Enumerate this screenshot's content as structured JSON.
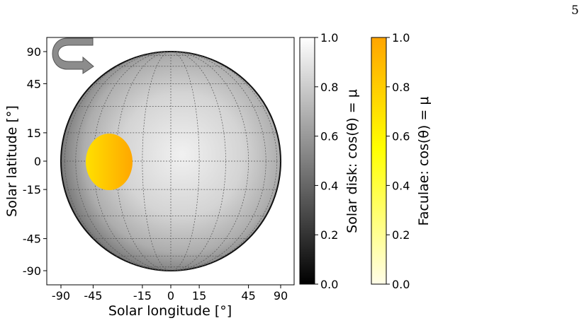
{
  "page": {
    "number": "5"
  },
  "chart_data": {
    "type": "heatmap",
    "title": "",
    "xlabel": "Solar longitude [°]",
    "ylabel": "Solar latitude [°]",
    "xlim": [
      -100,
      100
    ],
    "ylim": [
      -100,
      100
    ],
    "xticks": [
      -90,
      -45,
      -15,
      0,
      15,
      45,
      90
    ],
    "yticks": [
      90,
      45,
      15,
      0,
      -15,
      -45,
      -90
    ],
    "grid": true,
    "grid_longitudes": [
      -75,
      -60,
      -45,
      -30,
      -15,
      0,
      15,
      30,
      45,
      60,
      75
    ],
    "grid_latitudes": [
      -75,
      -60,
      -45,
      -30,
      -15,
      0,
      15,
      30,
      45,
      60,
      75
    ],
    "disk": {
      "value": "mu = cos(theta)",
      "center_mu": 1.0,
      "limb_mu": 0.0
    },
    "rotation_arrow": {
      "direction": "clockwise",
      "icon": "rotation-arrow-icon"
    },
    "features": [
      {
        "name": "facula",
        "lon_range": [
          -55,
          -25
        ],
        "lat_range": [
          -15,
          15
        ],
        "mu_range": [
          0.55,
          0.85
        ]
      }
    ],
    "colorbars": [
      {
        "label": "Solar disk: cos(θ) = μ",
        "cmap": "gray",
        "vmin": 0.0,
        "vmax": 1.0,
        "ticks": [
          "0.0",
          "0.2",
          "0.4",
          "0.6",
          "0.8",
          "1.0"
        ],
        "color_low": "#000000",
        "color_high": "#ffffff"
      },
      {
        "label": "Faculae: cos(θ) = μ",
        "cmap": "Wistia",
        "vmin": 0.0,
        "vmax": 1.0,
        "ticks": [
          "0.0",
          "0.2",
          "0.4",
          "0.6",
          "0.8",
          "1.0"
        ],
        "color_low": "#fffde8",
        "color_mid": "#ffff00",
        "color_high": "#ffa500"
      }
    ]
  }
}
